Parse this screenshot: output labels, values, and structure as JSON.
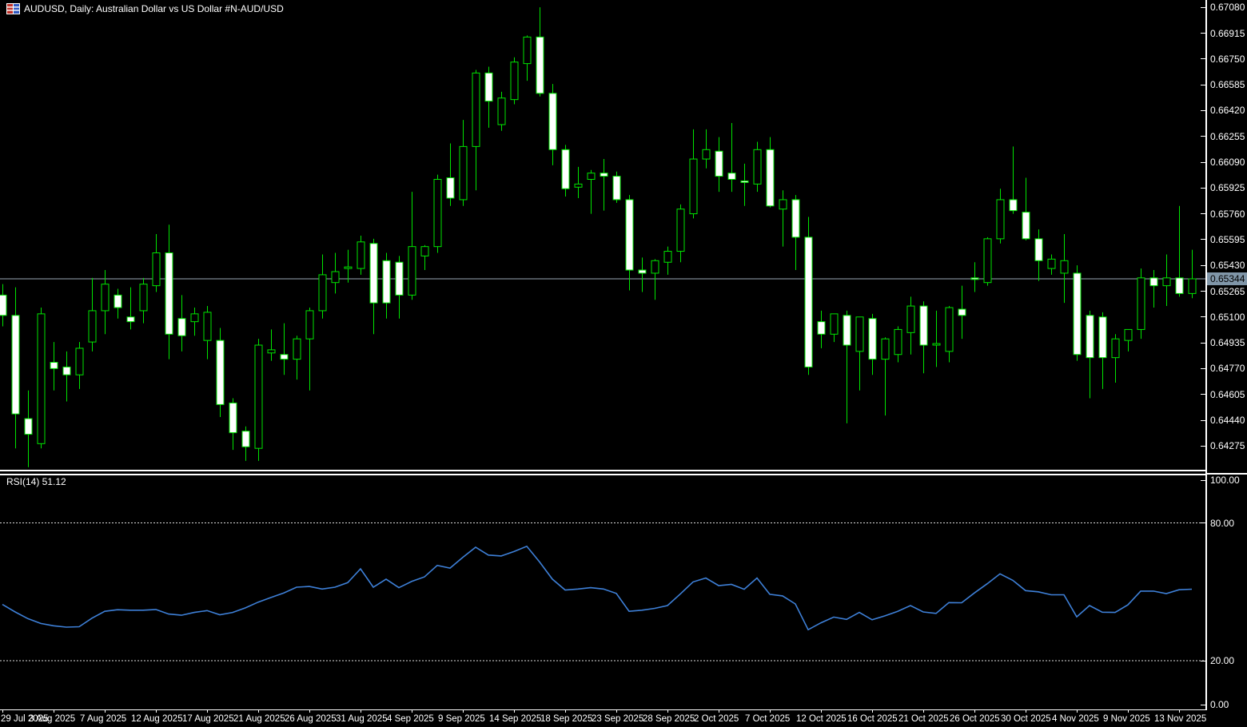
{
  "window": {
    "title": "AUDUSD, Daily:  Australian Dollar vs US Dollar #N-AUD/USD",
    "symbol": "AUDUSD",
    "timeframe": "Daily"
  },
  "indicator": {
    "label": "RSI(14) 51.12",
    "name": "RSI",
    "period": 14,
    "value": 51.12
  },
  "price_axis": {
    "current_price": "0.65344",
    "labels": [
      "0.67080",
      "0.66915",
      "0.66750",
      "0.66585",
      "0.66420",
      "0.66255",
      "0.66090",
      "0.65925",
      "0.65760",
      "0.65595",
      "0.65430",
      "0.65265",
      "0.65100",
      "0.64935",
      "0.64770",
      "0.64605",
      "0.64440",
      "0.64275"
    ]
  },
  "rsi_axis": {
    "labels": [
      "100.00",
      "80.00",
      "20.00",
      "0.00"
    ],
    "levels": [
      100,
      80,
      20,
      0
    ]
  },
  "time_axis": {
    "labels": [
      "29 Jul 2025",
      "3 Aug 2025",
      "7 Aug 2025",
      "12 Aug 2025",
      "17 Aug 2025",
      "21 Aug 2025",
      "26 Aug 2025",
      "31 Aug 2025",
      "4 Sep 2025",
      "9 Sep 2025",
      "14 Sep 2025",
      "18 Sep 2025",
      "23 Sep 2025",
      "28 Sep 2025",
      "2 Oct 2025",
      "7 Oct 2025",
      "12 Oct 2025",
      "16 Oct 2025",
      "21 Oct 2025",
      "26 Oct 2025",
      "30 Oct 2025",
      "4 Nov 2025",
      "9 Nov 2025",
      "13 Nov 2025"
    ],
    "bars_per_label": 4
  },
  "colors": {
    "background": "#000000",
    "text": "#ffffff",
    "candle_outline": "#00e400",
    "bear_fill": "#ffffff",
    "bull_fill": "#000000",
    "price_line": "#9aa8b4",
    "price_badge_bg": "#8096a8",
    "rsi_line": "#3e80d8",
    "level_dash": "#dcdcdc"
  },
  "chart_data": [
    {
      "type": "candlestick",
      "title": "AUDUSD Daily",
      "ylabel": "Price (USD)",
      "ylim": [
        0.6412,
        0.6712
      ],
      "price_line": 0.65344,
      "tick_dates": [
        "29 Jul 2025",
        "3 Aug 2025",
        "7 Aug 2025",
        "12 Aug 2025",
        "17 Aug 2025",
        "21 Aug 2025",
        "26 Aug 2025",
        "31 Aug 2025",
        "4 Sep 2025",
        "9 Sep 2025",
        "14 Sep 2025",
        "18 Sep 2025",
        "23 Sep 2025",
        "28 Sep 2025",
        "2 Oct 2025",
        "7 Oct 2025",
        "12 Oct 2025",
        "16 Oct 2025",
        "21 Oct 2025",
        "26 Oct 2025",
        "30 Oct 2025",
        "4 Nov 2025",
        "9 Nov 2025",
        "13 Nov 2025"
      ],
      "ohlc": [
        [
          0.6524,
          0.6531,
          0.6504,
          0.6511
        ],
        [
          0.6511,
          0.6529,
          0.6426,
          0.6448
        ],
        [
          0.6445,
          0.6463,
          0.6414,
          0.6435
        ],
        [
          0.6429,
          0.6516,
          0.6426,
          0.6512
        ],
        [
          0.6481,
          0.6494,
          0.6463,
          0.6477
        ],
        [
          0.6478,
          0.6488,
          0.6456,
          0.6473
        ],
        [
          0.6473,
          0.6494,
          0.6464,
          0.649
        ],
        [
          0.6494,
          0.6535,
          0.6488,
          0.6514
        ],
        [
          0.6514,
          0.654,
          0.6499,
          0.6531
        ],
        [
          0.6524,
          0.6528,
          0.6509,
          0.6516
        ],
        [
          0.651,
          0.6529,
          0.6502,
          0.6507
        ],
        [
          0.6514,
          0.6535,
          0.6506,
          0.6531
        ],
        [
          0.653,
          0.6563,
          0.6526,
          0.6551
        ],
        [
          0.6551,
          0.6569,
          0.6483,
          0.6499
        ],
        [
          0.6509,
          0.6524,
          0.6488,
          0.6498
        ],
        [
          0.6507,
          0.6516,
          0.6498,
          0.6512
        ],
        [
          0.6495,
          0.6517,
          0.6483,
          0.6513
        ],
        [
          0.6495,
          0.6503,
          0.6446,
          0.6454
        ],
        [
          0.6455,
          0.6458,
          0.6425,
          0.6436
        ],
        [
          0.6437,
          0.644,
          0.6418,
          0.6427
        ],
        [
          0.6426,
          0.6496,
          0.6418,
          0.6492
        ],
        [
          0.6487,
          0.6502,
          0.6482,
          0.6489
        ],
        [
          0.6486,
          0.6506,
          0.6473,
          0.6483
        ],
        [
          0.6483,
          0.6498,
          0.647,
          0.6496
        ],
        [
          0.6496,
          0.6516,
          0.6463,
          0.6514
        ],
        [
          0.6514,
          0.655,
          0.6509,
          0.6537
        ],
        [
          0.6532,
          0.6551,
          0.6525,
          0.6539
        ],
        [
          0.6541,
          0.6553,
          0.6532,
          0.6542
        ],
        [
          0.6541,
          0.6562,
          0.6537,
          0.6558
        ],
        [
          0.6557,
          0.656,
          0.6499,
          0.6519
        ],
        [
          0.6546,
          0.6551,
          0.6509,
          0.6519
        ],
        [
          0.6545,
          0.6549,
          0.6509,
          0.6524
        ],
        [
          0.6524,
          0.659,
          0.6521,
          0.6555
        ],
        [
          0.6549,
          0.6556,
          0.654,
          0.6555
        ],
        [
          0.6555,
          0.6601,
          0.6551,
          0.6598
        ],
        [
          0.6599,
          0.6621,
          0.6581,
          0.6586
        ],
        [
          0.6585,
          0.6636,
          0.6581,
          0.6619
        ],
        [
          0.6619,
          0.6668,
          0.6591,
          0.6666
        ],
        [
          0.6666,
          0.667,
          0.6631,
          0.6648
        ],
        [
          0.6633,
          0.6654,
          0.6629,
          0.665
        ],
        [
          0.6649,
          0.6676,
          0.6646,
          0.6673
        ],
        [
          0.6672,
          0.669,
          0.6661,
          0.6689
        ],
        [
          0.6689,
          0.6708,
          0.6651,
          0.6653
        ],
        [
          0.6653,
          0.6659,
          0.6607,
          0.6617
        ],
        [
          0.6617,
          0.662,
          0.6587,
          0.6592
        ],
        [
          0.6593,
          0.6606,
          0.6586,
          0.6595
        ],
        [
          0.6598,
          0.6604,
          0.6576,
          0.6602
        ],
        [
          0.6602,
          0.6611,
          0.6578,
          0.66
        ],
        [
          0.66,
          0.6603,
          0.6583,
          0.6585
        ],
        [
          0.6585,
          0.6588,
          0.6527,
          0.654
        ],
        [
          0.654,
          0.6548,
          0.6526,
          0.6538
        ],
        [
          0.6538,
          0.6547,
          0.6521,
          0.6546
        ],
        [
          0.6545,
          0.6555,
          0.6537,
          0.6552
        ],
        [
          0.6552,
          0.6582,
          0.6545,
          0.6579
        ],
        [
          0.6576,
          0.663,
          0.6573,
          0.6611
        ],
        [
          0.6611,
          0.663,
          0.6605,
          0.6617
        ],
        [
          0.6616,
          0.6625,
          0.659,
          0.66
        ],
        [
          0.6602,
          0.6634,
          0.659,
          0.6598
        ],
        [
          0.6597,
          0.6608,
          0.6581,
          0.6596
        ],
        [
          0.6595,
          0.6622,
          0.659,
          0.6617
        ],
        [
          0.6617,
          0.6625,
          0.658,
          0.6581
        ],
        [
          0.6579,
          0.6591,
          0.6555,
          0.6585
        ],
        [
          0.6585,
          0.6588,
          0.654,
          0.6561
        ],
        [
          0.6561,
          0.6574,
          0.6473,
          0.6478
        ],
        [
          0.6507,
          0.6514,
          0.649,
          0.6499
        ],
        [
          0.6499,
          0.6512,
          0.6494,
          0.6512
        ],
        [
          0.6511,
          0.6514,
          0.6442,
          0.6492
        ],
        [
          0.6488,
          0.651,
          0.6463,
          0.651
        ],
        [
          0.6509,
          0.6512,
          0.6473,
          0.6483
        ],
        [
          0.6483,
          0.6497,
          0.6447,
          0.6496
        ],
        [
          0.6486,
          0.6504,
          0.6481,
          0.6502
        ],
        [
          0.65,
          0.6523,
          0.6486,
          0.6517
        ],
        [
          0.6517,
          0.652,
          0.6474,
          0.6492
        ],
        [
          0.6492,
          0.6514,
          0.6478,
          0.6493
        ],
        [
          0.6488,
          0.6517,
          0.6481,
          0.6516
        ],
        [
          0.6515,
          0.653,
          0.6496,
          0.6511
        ],
        [
          0.6535,
          0.6545,
          0.6526,
          0.6534
        ],
        [
          0.6532,
          0.6561,
          0.653,
          0.656
        ],
        [
          0.656,
          0.6592,
          0.6557,
          0.6585
        ],
        [
          0.6585,
          0.6619,
          0.6576,
          0.6578
        ],
        [
          0.6577,
          0.6599,
          0.6559,
          0.656
        ],
        [
          0.656,
          0.6566,
          0.6533,
          0.6546
        ],
        [
          0.6541,
          0.655,
          0.6537,
          0.6547
        ],
        [
          0.6538,
          0.6563,
          0.6519,
          0.6546
        ],
        [
          0.6538,
          0.6543,
          0.6482,
          0.6486
        ],
        [
          0.6511,
          0.6514,
          0.6458,
          0.6484
        ],
        [
          0.651,
          0.6513,
          0.6464,
          0.6484
        ],
        [
          0.6484,
          0.6499,
          0.6468,
          0.6496
        ],
        [
          0.6495,
          0.6501,
          0.6488,
          0.6502
        ],
        [
          0.6502,
          0.6541,
          0.6496,
          0.6535
        ],
        [
          0.6535,
          0.654,
          0.6516,
          0.653
        ],
        [
          0.653,
          0.655,
          0.6517,
          0.6535
        ],
        [
          0.6535,
          0.6581,
          0.6523,
          0.6525
        ],
        [
          0.6525,
          0.6553,
          0.6522,
          0.65344
        ]
      ]
    },
    {
      "type": "line",
      "name": "RSI(14)",
      "ylim": [
        0,
        100
      ],
      "levels": [
        80,
        20
      ],
      "last_value": 51.12,
      "values": [
        44.5,
        41.2,
        38.3,
        36.2,
        35.2,
        34.6,
        34.8,
        38.5,
        41.5,
        42.2,
        42.0,
        42.0,
        42.3,
        40.3,
        39.8,
        41.0,
        41.8,
        40.0,
        41.0,
        43.0,
        45.5,
        47.5,
        49.5,
        52.0,
        52.3,
        51.2,
        52.0,
        54.0,
        60.0,
        52.0,
        55.5,
        51.8,
        54.5,
        56.5,
        61.5,
        60.3,
        65.0,
        69.4,
        66.0,
        65.6,
        67.5,
        69.8,
        63.0,
        55.5,
        50.8,
        51.2,
        51.8,
        51.2,
        49.3,
        41.5,
        42.0,
        42.8,
        44.0,
        49.0,
        54.3,
        56.0,
        52.7,
        53.2,
        51.1,
        56.0,
        48.9,
        48.2,
        44.7,
        33.5,
        36.5,
        39.0,
        38.0,
        41.0,
        37.8,
        39.5,
        41.5,
        44.0,
        41.2,
        40.6,
        45.3,
        45.2,
        49.5,
        53.5,
        57.8,
        55.0,
        50.5,
        50.0,
        48.7,
        48.7,
        39.1,
        44.0,
        41.1,
        41.0,
        44.3,
        50.3,
        50.3,
        49.2,
        50.9,
        51.12
      ]
    }
  ]
}
